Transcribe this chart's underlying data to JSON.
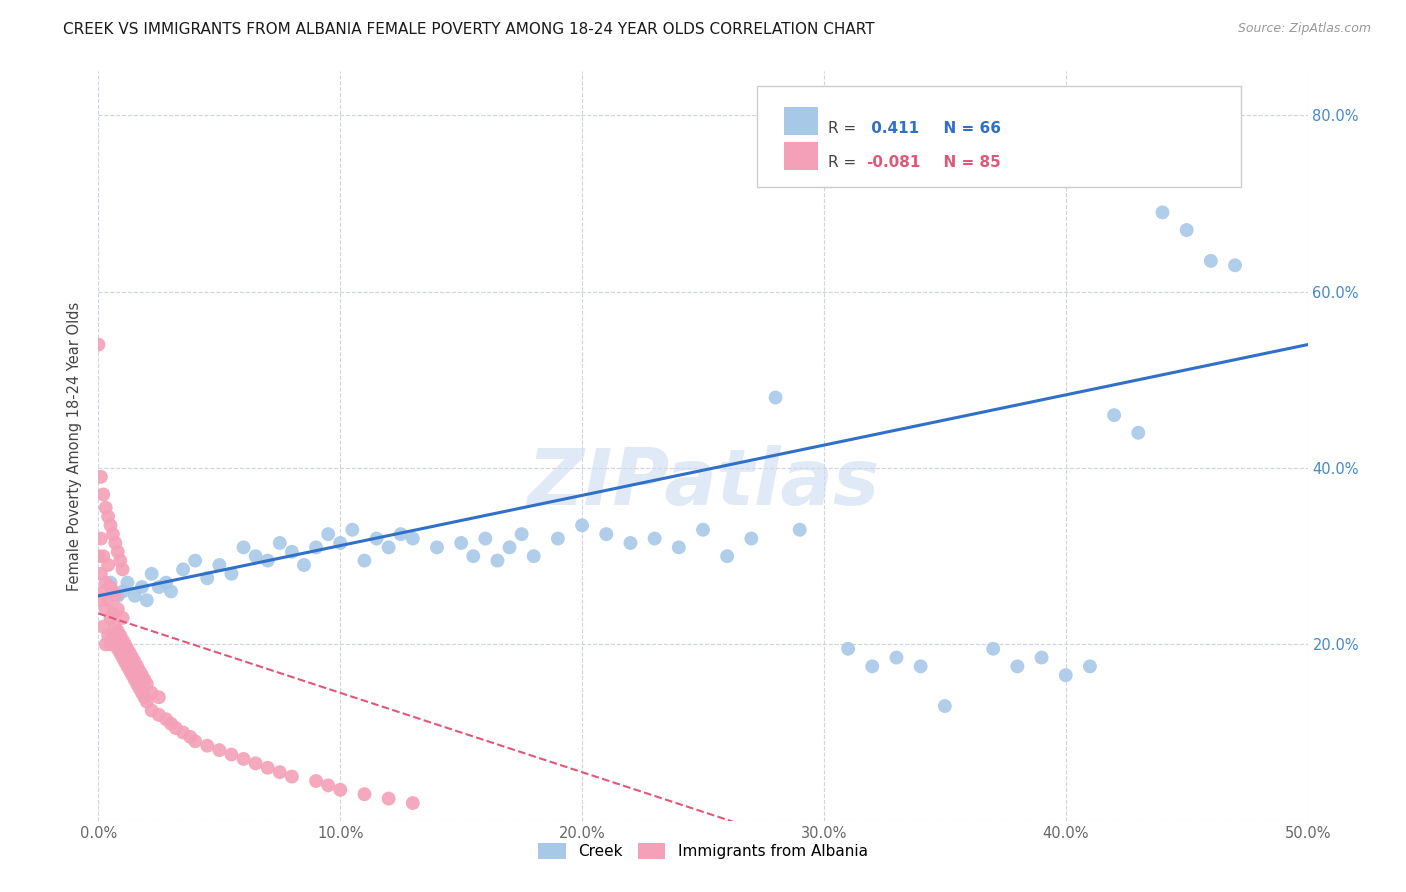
{
  "title": "CREEK VS IMMIGRANTS FROM ALBANIA FEMALE POVERTY AMONG 18-24 YEAR OLDS CORRELATION CHART",
  "source": "Source: ZipAtlas.com",
  "ylabel": "Female Poverty Among 18-24 Year Olds",
  "xlim": [
    0.0,
    0.5
  ],
  "ylim": [
    0.0,
    0.85
  ],
  "creek_R": 0.411,
  "creek_N": 66,
  "albania_R": -0.081,
  "albania_N": 85,
  "creek_color": "#a8c8e8",
  "albania_color": "#f4a0b8",
  "creek_line_color": "#3070c8",
  "albania_line_color": "#e05878",
  "watermark": "ZIPatlas",
  "creek_x": [
    0.005,
    0.008,
    0.01,
    0.012,
    0.015,
    0.018,
    0.02,
    0.022,
    0.025,
    0.028,
    0.03,
    0.035,
    0.04,
    0.045,
    0.05,
    0.055,
    0.06,
    0.065,
    0.07,
    0.075,
    0.08,
    0.085,
    0.09,
    0.095,
    0.1,
    0.105,
    0.11,
    0.115,
    0.12,
    0.125,
    0.13,
    0.14,
    0.15,
    0.155,
    0.16,
    0.165,
    0.17,
    0.175,
    0.18,
    0.19,
    0.2,
    0.21,
    0.22,
    0.23,
    0.24,
    0.25,
    0.26,
    0.27,
    0.28,
    0.29,
    0.31,
    0.32,
    0.33,
    0.34,
    0.35,
    0.37,
    0.38,
    0.39,
    0.4,
    0.41,
    0.42,
    0.43,
    0.44,
    0.45,
    0.46,
    0.47
  ],
  "creek_y": [
    0.27,
    0.255,
    0.26,
    0.27,
    0.255,
    0.265,
    0.25,
    0.28,
    0.265,
    0.27,
    0.26,
    0.285,
    0.295,
    0.275,
    0.29,
    0.28,
    0.31,
    0.3,
    0.295,
    0.315,
    0.305,
    0.29,
    0.31,
    0.325,
    0.315,
    0.33,
    0.295,
    0.32,
    0.31,
    0.325,
    0.32,
    0.31,
    0.315,
    0.3,
    0.32,
    0.295,
    0.31,
    0.325,
    0.3,
    0.32,
    0.335,
    0.325,
    0.315,
    0.32,
    0.31,
    0.33,
    0.3,
    0.32,
    0.48,
    0.33,
    0.195,
    0.175,
    0.185,
    0.175,
    0.13,
    0.195,
    0.175,
    0.185,
    0.165,
    0.175,
    0.46,
    0.44,
    0.69,
    0.67,
    0.635,
    0.63
  ],
  "albania_x": [
    0.0,
    0.001,
    0.001,
    0.001,
    0.002,
    0.002,
    0.002,
    0.003,
    0.003,
    0.003,
    0.004,
    0.004,
    0.004,
    0.005,
    0.005,
    0.005,
    0.006,
    0.006,
    0.006,
    0.007,
    0.007,
    0.007,
    0.008,
    0.008,
    0.008,
    0.009,
    0.009,
    0.01,
    0.01,
    0.01,
    0.011,
    0.011,
    0.012,
    0.012,
    0.013,
    0.013,
    0.014,
    0.014,
    0.015,
    0.015,
    0.016,
    0.016,
    0.017,
    0.017,
    0.018,
    0.018,
    0.019,
    0.019,
    0.02,
    0.02,
    0.022,
    0.022,
    0.025,
    0.025,
    0.028,
    0.03,
    0.032,
    0.035,
    0.038,
    0.04,
    0.045,
    0.05,
    0.055,
    0.06,
    0.065,
    0.07,
    0.075,
    0.08,
    0.09,
    0.095,
    0.1,
    0.11,
    0.12,
    0.13,
    0.0,
    0.001,
    0.002,
    0.003,
    0.004,
    0.005,
    0.006,
    0.007,
    0.008,
    0.009,
    0.01
  ],
  "albania_y": [
    0.3,
    0.25,
    0.28,
    0.32,
    0.22,
    0.26,
    0.3,
    0.2,
    0.24,
    0.27,
    0.21,
    0.25,
    0.29,
    0.2,
    0.23,
    0.265,
    0.21,
    0.235,
    0.26,
    0.2,
    0.22,
    0.255,
    0.195,
    0.215,
    0.24,
    0.19,
    0.21,
    0.185,
    0.205,
    0.23,
    0.18,
    0.2,
    0.175,
    0.195,
    0.17,
    0.19,
    0.165,
    0.185,
    0.16,
    0.18,
    0.155,
    0.175,
    0.15,
    0.17,
    0.145,
    0.165,
    0.14,
    0.16,
    0.135,
    0.155,
    0.125,
    0.145,
    0.12,
    0.14,
    0.115,
    0.11,
    0.105,
    0.1,
    0.095,
    0.09,
    0.085,
    0.08,
    0.075,
    0.07,
    0.065,
    0.06,
    0.055,
    0.05,
    0.045,
    0.04,
    0.035,
    0.03,
    0.025,
    0.02,
    0.54,
    0.39,
    0.37,
    0.355,
    0.345,
    0.335,
    0.325,
    0.315,
    0.305,
    0.295,
    0.285
  ]
}
